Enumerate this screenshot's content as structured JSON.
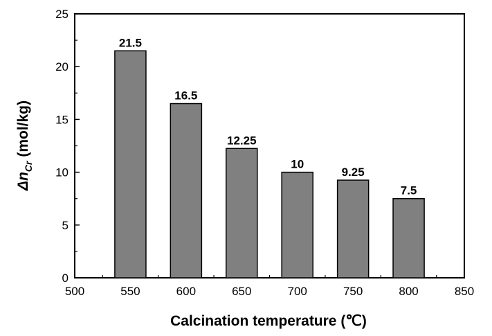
{
  "chart_data": {
    "type": "bar",
    "x": [
      550,
      600,
      650,
      700,
      750,
      800
    ],
    "values": [
      21.5,
      16.5,
      12.25,
      10,
      9.25,
      7.5
    ],
    "data_labels": [
      "21.5",
      "16.5",
      "12.25",
      "10",
      "9.25",
      "7.5"
    ],
    "bar_width": 28,
    "xlabel": "Calcination temperature (℃)",
    "ylabel": {
      "prefix": "Δn",
      "subscript": "Cr",
      "suffix": " (mol/kg)"
    },
    "xlim": [
      500,
      850
    ],
    "ylim": [
      0,
      25
    ],
    "xticks": [
      500,
      550,
      600,
      650,
      700,
      750,
      800,
      850
    ],
    "yticks": [
      0,
      5,
      10,
      15,
      20,
      25
    ],
    "grid": false,
    "legend": "none",
    "bar_color": "#808080",
    "colors": {
      "axis": "#000000",
      "background": "#ffffff"
    }
  }
}
